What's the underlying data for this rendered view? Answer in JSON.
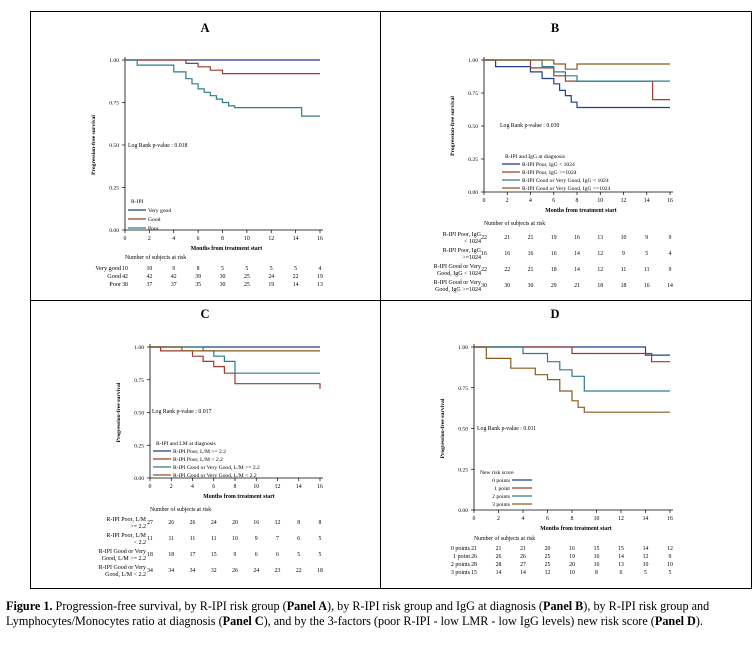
{
  "caption": {
    "label": "Figure 1.",
    "parts": [
      {
        "t": " Progression-free survival, by R-IPI risk group (",
        "b": false
      },
      {
        "t": "Panel A",
        "b": true
      },
      {
        "t": "), by R-IPI risk group and IgG at diagnosis (",
        "b": false
      },
      {
        "t": "Panel B",
        "b": true
      },
      {
        "t": "), by R-IPI risk group and Lymphocytes/Monocytes ratio at diagnosis (",
        "b": false
      },
      {
        "t": "Panel C",
        "b": true
      },
      {
        "t": "), and by the 3-factors (poor R-IPI - low LMR - low IgG levels) new risk score (",
        "b": false
      },
      {
        "t": "Panel D",
        "b": true
      },
      {
        "t": ").",
        "b": false
      }
    ]
  },
  "chart_data": [
    {
      "panel": "A",
      "type": "line",
      "step": true,
      "ylabel": "Progression-free survival",
      "xlabel": "Months from treatment start",
      "xticks": [
        "0",
        "2",
        "4",
        "6",
        "8",
        "10",
        "12",
        "14",
        "16"
      ],
      "yticks": [
        "0.00",
        "0.25",
        "0.50",
        "0.75",
        "1.00"
      ],
      "xlim": [
        0,
        16
      ],
      "ylim": [
        0,
        1
      ],
      "pvalue": "Log Rank p-value : 0.018",
      "legend_title": "R-IPI",
      "series": [
        {
          "name": "Very good",
          "color": "#1f3f8f",
          "x": [
            0,
            16
          ],
          "y": [
            1.0,
            1.0
          ]
        },
        {
          "name": "Good",
          "color": "#a0392f",
          "x": [
            0,
            5,
            6,
            7,
            8,
            16
          ],
          "y": [
            1.0,
            0.98,
            0.96,
            0.94,
            0.92,
            0.92
          ]
        },
        {
          "name": "Poor",
          "color": "#2e7d8c",
          "x": [
            0,
            1,
            4,
            5,
            5.5,
            6,
            6.5,
            7,
            7.5,
            8,
            8.5,
            9,
            12,
            14.5,
            16
          ],
          "y": [
            1.0,
            0.97,
            0.93,
            0.89,
            0.86,
            0.83,
            0.81,
            0.79,
            0.77,
            0.75,
            0.73,
            0.72,
            0.72,
            0.67,
            0.67
          ]
        }
      ],
      "risk_title": "Number of subjects at risk",
      "risk_rows": [
        {
          "label": [
            "Very good"
          ],
          "values": [
            "10",
            "10",
            "9",
            "8",
            "5",
            "5",
            "5",
            "5",
            "4"
          ]
        },
        {
          "label": [
            "Good"
          ],
          "values": [
            "42",
            "42",
            "42",
            "39",
            "30",
            "25",
            "24",
            "22",
            "19"
          ]
        },
        {
          "label": [
            "Poor"
          ],
          "values": [
            "38",
            "37",
            "37",
            "35",
            "30",
            "25",
            "19",
            "14",
            "13"
          ]
        }
      ]
    },
    {
      "panel": "B",
      "type": "line",
      "step": true,
      "ylabel": "Progression-free survival",
      "xlabel": "Months from treatment start",
      "xticks": [
        "0",
        "2",
        "4",
        "6",
        "8",
        "10",
        "12",
        "14",
        "16"
      ],
      "yticks": [
        "0.00",
        "0.25",
        "0.50",
        "0.75",
        "1.00"
      ],
      "xlim": [
        0,
        16
      ],
      "ylim": [
        0,
        1
      ],
      "pvalue": "Log Rank p-value : 0.030",
      "legend_title": "R-IPI and IgG at diagnosis",
      "series": [
        {
          "name": "R-IPI Poor, IgG < 1024",
          "color": "#1f3f8f",
          "x": [
            0,
            1,
            4,
            5,
            6,
            6.5,
            7,
            7.5,
            8,
            16
          ],
          "y": [
            1.0,
            0.95,
            0.91,
            0.86,
            0.82,
            0.77,
            0.73,
            0.68,
            0.64,
            0.64
          ]
        },
        {
          "name": "R-IPI Poor, IgG >=1024",
          "color": "#a0392f",
          "x": [
            0,
            4,
            6,
            7,
            14,
            14.5,
            16
          ],
          "y": [
            1.0,
            0.94,
            0.88,
            0.84,
            0.84,
            0.7,
            0.7
          ]
        },
        {
          "name": "R-IPI Good or Very Good, IgG < 1024",
          "color": "#2e7d8c",
          "x": [
            0,
            5,
            6,
            7,
            8,
            16
          ],
          "y": [
            1.0,
            0.95,
            0.91,
            0.88,
            0.84,
            0.84
          ]
        },
        {
          "name": "R-IPI Good or Very Good, IgG >=1024",
          "color": "#8a5a1f",
          "x": [
            0,
            6,
            7,
            8,
            16
          ],
          "y": [
            1.0,
            0.97,
            0.93,
            0.97,
            0.97
          ]
        }
      ],
      "risk_title": "Number of subjects at risk",
      "risk_rows": [
        {
          "label": [
            "R-IPI Poor, IgG",
            "< 1024"
          ],
          "values": [
            "22",
            "21",
            "21",
            "19",
            "16",
            "13",
            "10",
            "9",
            "9"
          ]
        },
        {
          "label": [
            "R-IPI Poor, IgG",
            ">=1024"
          ],
          "values": [
            "16",
            "16",
            "16",
            "16",
            "14",
            "12",
            "9",
            "5",
            "4"
          ]
        },
        {
          "label": [
            "R-IPI Good or Very",
            "Good, IgG < 1024"
          ],
          "values": [
            "22",
            "22",
            "21",
            "18",
            "14",
            "12",
            "11",
            "11",
            "9"
          ]
        },
        {
          "label": [
            "R-IPI Good or Very",
            "Good, IgG >=1024"
          ],
          "values": [
            "30",
            "30",
            "30",
            "29",
            "21",
            "18",
            "18",
            "16",
            "14"
          ]
        }
      ]
    },
    {
      "panel": "C",
      "type": "line",
      "step": true,
      "ylabel": "Progression-free survival",
      "xlabel": "Months from treatment start",
      "xticks": [
        "0",
        "2",
        "4",
        "6",
        "8",
        "10",
        "12",
        "14",
        "16"
      ],
      "yticks": [
        "0.00",
        "0.25",
        "0.50",
        "0.75",
        "1.00"
      ],
      "xlim": [
        0,
        16
      ],
      "ylim": [
        0,
        1
      ],
      "pvalue": "Log Rank p-value : 0.017",
      "legend_title": "R-IPI and LM at diagnosis",
      "series": [
        {
          "name": "R-IPI Poor, L/M >= 2.2",
          "color": "#1f3f8f",
          "x": [
            0,
            16
          ],
          "y": [
            1.0,
            1.0
          ]
        },
        {
          "name": "R-IPI Poor, L/M < 2.2",
          "color": "#a0392f",
          "x": [
            0,
            1,
            4,
            5,
            6,
            7,
            8,
            14.5,
            16
          ],
          "y": [
            1.0,
            0.97,
            0.93,
            0.89,
            0.85,
            0.8,
            0.72,
            0.72,
            0.68
          ]
        },
        {
          "name": "R-IPI Good or Very Good, L/M >= 2.2",
          "color": "#2e7d8c",
          "x": [
            0,
            5,
            6,
            7,
            8,
            16
          ],
          "y": [
            1.0,
            0.97,
            0.93,
            0.89,
            0.8,
            0.8
          ]
        },
        {
          "name": "R-IPI Good or Very Good, L/M < 2.2",
          "color": "#8a5a1f",
          "x": [
            0,
            3,
            6,
            16
          ],
          "y": [
            1.0,
            0.97,
            0.97,
            0.97
          ]
        }
      ],
      "risk_title": "Number of subjects at risk",
      "risk_rows": [
        {
          "label": [
            "R-IPI Poor, L/M",
            ">= 2.2"
          ],
          "values": [
            "27",
            "26",
            "26",
            "24",
            "20",
            "16",
            "12",
            "8",
            "8"
          ]
        },
        {
          "label": [
            "R-IPI Poor, L/M",
            "< 2.2"
          ],
          "values": [
            "11",
            "11",
            "11",
            "11",
            "10",
            "9",
            "7",
            "6",
            "5"
          ]
        },
        {
          "label": [
            "R-IPI Good or Very",
            "Good, L/M >= 2.2"
          ],
          "values": [
            "18",
            "18",
            "17",
            "15",
            "9",
            "6",
            "6",
            "5",
            "5"
          ]
        },
        {
          "label": [
            "R-IPI Good or Very",
            "Good, L/M < 2.2"
          ],
          "values": [
            "34",
            "34",
            "34",
            "32",
            "26",
            "24",
            "23",
            "22",
            "18"
          ]
        }
      ]
    },
    {
      "panel": "D",
      "type": "line",
      "step": true,
      "ylabel": "Progression-free survival",
      "xlabel": "Months from treatment start",
      "xticks": [
        "0",
        "2",
        "4",
        "6",
        "8",
        "10",
        "12",
        "14",
        "16"
      ],
      "yticks": [
        "0.00",
        "0.25",
        "0.50",
        "0.75",
        "1.00"
      ],
      "xlim": [
        0,
        16
      ],
      "ylim": [
        0,
        1
      ],
      "pvalue": "Log Rank p-value : 0.011",
      "legend_title": "New risk score",
      "series": [
        {
          "name": "0 points",
          "color": "#1f3f8f",
          "x": [
            0,
            14,
            16
          ],
          "y": [
            1.0,
            0.95,
            0.95
          ]
        },
        {
          "name": "1 point",
          "color": "#a0392f",
          "x": [
            0,
            8,
            14.5,
            16
          ],
          "y": [
            1.0,
            0.96,
            0.91,
            0.91
          ]
        },
        {
          "name": "2 points",
          "color": "#2e7d8c",
          "x": [
            0,
            4,
            6,
            7,
            8,
            9,
            16
          ],
          "y": [
            1.0,
            0.96,
            0.91,
            0.86,
            0.82,
            0.73,
            0.73
          ]
        },
        {
          "name": "3 points",
          "color": "#8a5a1f",
          "x": [
            0,
            1,
            3,
            5,
            6,
            7,
            8,
            8.5,
            9,
            16
          ],
          "y": [
            1.0,
            0.93,
            0.87,
            0.83,
            0.8,
            0.73,
            0.67,
            0.63,
            0.6,
            0.6
          ]
        }
      ],
      "risk_title": "Number of subjects at risk",
      "risk_rows": [
        {
          "label": [
            "0 points"
          ],
          "values": [
            "21",
            "21",
            "21",
            "20",
            "16",
            "15",
            "15",
            "14",
            "12"
          ]
        },
        {
          "label": [
            "1 point"
          ],
          "values": [
            "26",
            "26",
            "26",
            "25",
            "19",
            "16",
            "14",
            "12",
            "9"
          ]
        },
        {
          "label": [
            "2 points"
          ],
          "values": [
            "28",
            "28",
            "27",
            "25",
            "20",
            "16",
            "13",
            "10",
            "10"
          ]
        },
        {
          "label": [
            "3 points"
          ],
          "values": [
            "15",
            "14",
            "14",
            "12",
            "10",
            "8",
            "6",
            "5",
            "5"
          ]
        }
      ]
    }
  ]
}
